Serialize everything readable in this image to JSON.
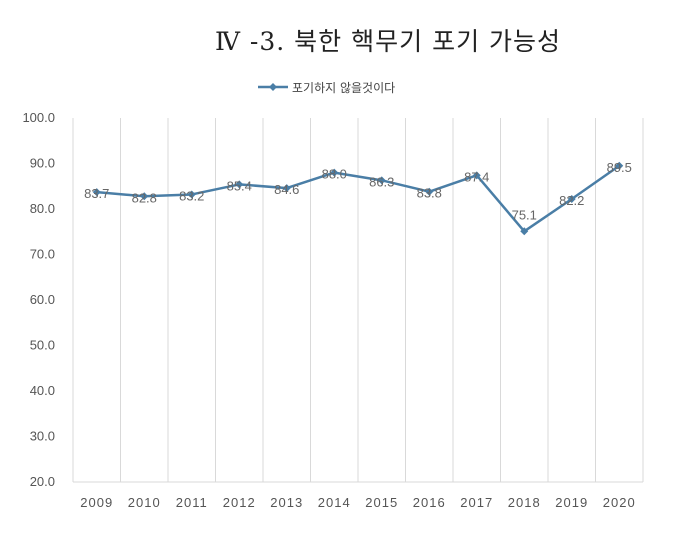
{
  "chart_data": {
    "type": "line",
    "title": "Ⅳ -3.  북한 핵무기 포기 가능성",
    "categories": [
      "2009",
      "2010",
      "2011",
      "2012",
      "2013",
      "2014",
      "2015",
      "2016",
      "2017",
      "2018",
      "2019",
      "2020"
    ],
    "series": [
      {
        "name": "포기하지 않을것이다",
        "values": [
          83.7,
          82.8,
          83.2,
          85.4,
          84.6,
          88.0,
          86.3,
          83.8,
          87.4,
          75.1,
          82.2,
          89.5
        ],
        "labels": [
          "83.7",
          "82.8",
          "83.2",
          "85.4",
          "84.6",
          "88.0",
          "86.3",
          "83.8",
          "87.4",
          "75.1",
          "82.2",
          "89.5"
        ]
      }
    ],
    "ylim": [
      20.0,
      100.0
    ],
    "yticks": [
      "20.0",
      "30.0",
      "40.0",
      "50.0",
      "60.0",
      "70.0",
      "80.0",
      "90.0",
      "100.0"
    ],
    "xlabel": "",
    "ylabel": "",
    "grid": "vertical",
    "legend_position": "top",
    "colors": {
      "line": "#4a7ea6",
      "grid": "#d9d9d9"
    }
  }
}
